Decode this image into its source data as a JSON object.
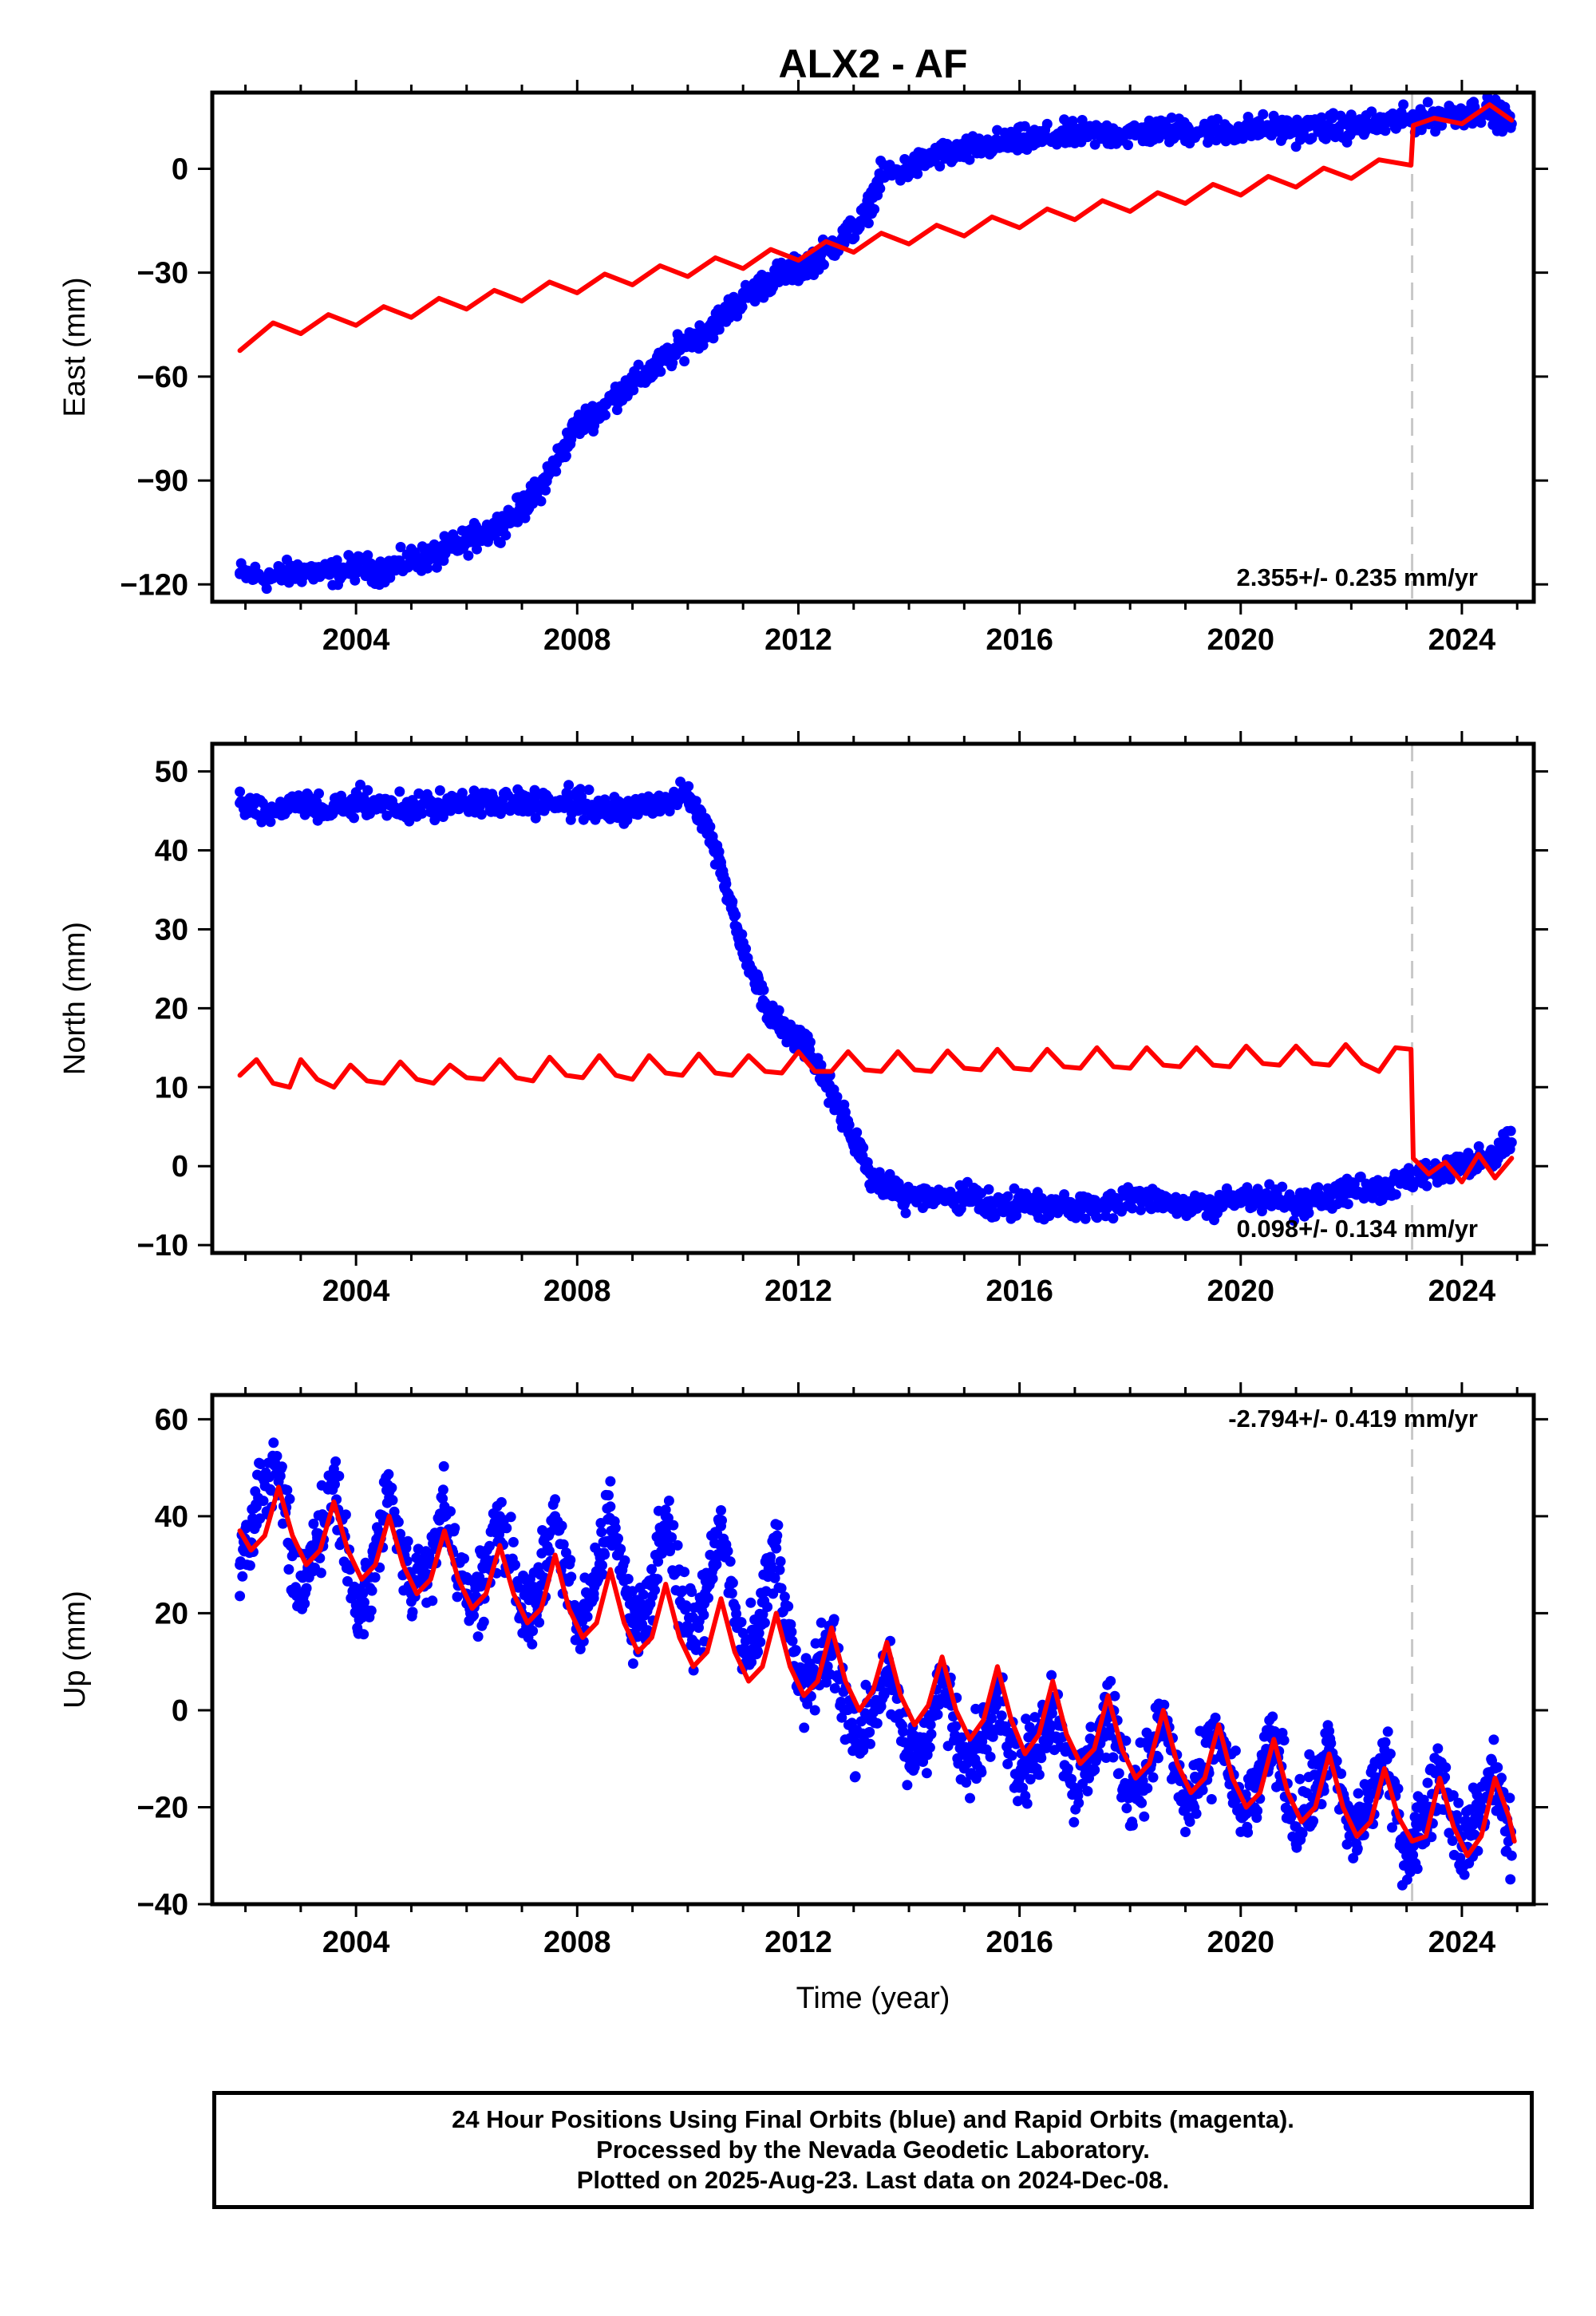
{
  "title": "ALX2 - AF",
  "xlabel": "Time (year)",
  "footer": {
    "line1": "24 Hour Positions Using Final Orbits (blue) and Rapid Orbits (magenta).",
    "line2": "Processed by the Nevada Geodetic Laboratory.",
    "line3": "Plotted on 2025-Aug-23. Last data on 2024-Dec-08."
  },
  "colors": {
    "observations": "#0000ff",
    "model": "#ff0000",
    "break_line": "#c8c8c8",
    "frame": "#000000"
  },
  "chart_data": [
    {
      "type": "scatter",
      "ylabel": "East (mm)",
      "rate_text": "2.355+/- 0.235 mm/yr",
      "xlim": [
        2001.4,
        2025.3
      ],
      "ylim": [
        -125,
        22
      ],
      "xticks": [
        2004,
        2008,
        2012,
        2016,
        2020,
        2024
      ],
      "yticks": [
        -120,
        -90,
        -60,
        -30,
        0
      ],
      "break_epoch": 2023.1,
      "observations": {
        "name": "Final Orbits",
        "x": [
          2001.9,
          2002.5,
          2003.0,
          2003.5,
          2004.0,
          2004.5,
          2005.0,
          2005.4,
          2005.8,
          2006.2,
          2006.6,
          2007.0,
          2007.3,
          2007.6,
          2008.0,
          2008.4,
          2008.8,
          2009.2,
          2009.6,
          2010.0,
          2010.4,
          2010.8,
          2011.2,
          2011.6,
          2012.0,
          2012.4,
          2012.8,
          2013.2,
          2013.5,
          2014.0,
          2014.5,
          2015.0,
          2015.5,
          2016.0,
          2016.5,
          2017.0,
          2017.5,
          2018.0,
          2018.5,
          2019.0,
          2019.5,
          2020.0,
          2020.5,
          2021.0,
          2021.5,
          2022.0,
          2022.5,
          2023.0,
          2023.5,
          2024.0,
          2024.5,
          2024.9
        ],
        "y": [
          -117,
          -118,
          -116,
          -117,
          -115,
          -116,
          -113,
          -112,
          -109,
          -106,
          -103,
          -98,
          -93,
          -85,
          -74,
          -70,
          -64,
          -60,
          -55,
          -50,
          -46,
          -40,
          -35,
          -31,
          -29,
          -25,
          -20,
          -14,
          -2,
          0,
          4,
          5,
          7,
          8,
          9,
          10,
          10,
          10,
          11,
          11,
          11,
          11,
          12,
          11,
          12,
          12,
          13,
          14,
          15,
          16,
          17,
          13
        ]
      },
      "model": {
        "name": "Model",
        "x": [
          2001.9,
          2002.5,
          2003.0,
          2003.5,
          2004.0,
          2004.5,
          2005.0,
          2005.5,
          2006.0,
          2006.5,
          2007.0,
          2007.5,
          2008.0,
          2008.5,
          2009.0,
          2009.5,
          2010.0,
          2010.5,
          2011.0,
          2011.5,
          2012.0,
          2012.5,
          2013.0,
          2013.5,
          2014.0,
          2014.5,
          2015.0,
          2015.5,
          2016.0,
          2016.5,
          2017.0,
          2017.5,
          2018.0,
          2018.5,
          2019.0,
          2019.5,
          2020.0,
          2020.5,
          2021.0,
          2021.5,
          2022.0,
          2022.5,
          2023.08,
          2023.12,
          2023.5,
          2024.0,
          2024.5,
          2024.9
        ],
        "y": [
          -52.5,
          -44.5,
          -47.6,
          -42.1,
          -45.2,
          -39.8,
          -42.9,
          -37.4,
          -40.5,
          -35.1,
          -38.2,
          -32.7,
          -35.8,
          -30.4,
          -33.5,
          -28.0,
          -31.1,
          -25.7,
          -28.8,
          -23.3,
          -26.4,
          -21.0,
          -24.1,
          -18.6,
          -21.7,
          -16.3,
          -19.4,
          -13.9,
          -17.0,
          -11.6,
          -14.7,
          -9.2,
          -12.3,
          -6.9,
          -10.0,
          -4.5,
          -7.6,
          -2.2,
          -5.3,
          0.2,
          -2.8,
          2.6,
          1.0,
          12.5,
          14.6,
          13.0,
          18.5,
          14.0
        ]
      }
    },
    {
      "type": "scatter",
      "ylabel": "North (mm)",
      "rate_text": "0.098+/- 0.134 mm/yr",
      "xlim": [
        2001.4,
        2025.3
      ],
      "ylim": [
        -11,
        53.5
      ],
      "xticks": [
        2004,
        2008,
        2012,
        2016,
        2020,
        2024
      ],
      "yticks": [
        -10,
        0,
        10,
        20,
        30,
        40,
        50
      ],
      "break_epoch": 2023.1,
      "observations": {
        "name": "Final Orbits",
        "x": [
          2001.9,
          2002.5,
          2003.0,
          2003.5,
          2004.0,
          2004.5,
          2005.0,
          2005.5,
          2006.0,
          2006.5,
          2007.0,
          2007.5,
          2008.0,
          2008.5,
          2009.0,
          2009.5,
          2010.0,
          2010.3,
          2010.6,
          2010.9,
          2011.2,
          2011.5,
          2011.8,
          2012.1,
          2012.4,
          2012.7,
          2013.0,
          2013.3,
          2013.7,
          2014.0,
          2014.5,
          2015.0,
          2015.5,
          2016.0,
          2016.5,
          2017.0,
          2017.5,
          2018.0,
          2018.5,
          2019.0,
          2019.5,
          2020.0,
          2020.5,
          2021.0,
          2021.5,
          2022.0,
          2022.5,
          2023.0,
          2023.5,
          2024.0,
          2024.5,
          2024.9
        ],
        "y": [
          46,
          45,
          46,
          45,
          46,
          46,
          45,
          46,
          46,
          46,
          46,
          46,
          46,
          45,
          45,
          46,
          47,
          44,
          38,
          30,
          24,
          19,
          17,
          16,
          12,
          8,
          3,
          -1,
          -3,
          -4,
          -4,
          -4,
          -5,
          -5,
          -5,
          -5,
          -5,
          -4,
          -4,
          -5,
          -5,
          -4,
          -4,
          -5,
          -4,
          -3,
          -3,
          -2,
          -1,
          0,
          1,
          3
        ]
      },
      "model": {
        "name": "Model",
        "x": [
          2001.9,
          2002.2,
          2002.5,
          2002.8,
          2003.0,
          2003.3,
          2003.6,
          2003.9,
          2004.2,
          2004.5,
          2004.8,
          2005.1,
          2005.4,
          2005.7,
          2006.0,
          2006.3,
          2006.6,
          2006.9,
          2007.2,
          2007.5,
          2007.8,
          2008.1,
          2008.4,
          2008.7,
          2009.0,
          2009.3,
          2009.6,
          2009.9,
          2010.2,
          2010.5,
          2010.8,
          2011.1,
          2011.4,
          2011.7,
          2012.0,
          2012.3,
          2012.6,
          2012.9,
          2013.2,
          2013.5,
          2013.8,
          2014.1,
          2014.4,
          2014.7,
          2015.0,
          2015.3,
          2015.6,
          2015.9,
          2016.2,
          2016.5,
          2016.8,
          2017.1,
          2017.4,
          2017.7,
          2018.0,
          2018.3,
          2018.6,
          2018.9,
          2019.2,
          2019.5,
          2019.8,
          2020.1,
          2020.4,
          2020.7,
          2021.0,
          2021.3,
          2021.6,
          2021.9,
          2022.2,
          2022.5,
          2022.8,
          2023.08,
          2023.12,
          2023.4,
          2023.7,
          2024.0,
          2024.3,
          2024.6,
          2024.9
        ],
        "y": [
          11.5,
          13.5,
          10.5,
          10.0,
          13.5,
          11.0,
          10.0,
          12.8,
          10.8,
          10.5,
          13.2,
          11.0,
          10.5,
          12.8,
          11.2,
          11.0,
          13.5,
          11.2,
          10.8,
          13.8,
          11.5,
          11.2,
          14.0,
          11.5,
          11.0,
          14.0,
          11.8,
          11.5,
          14.2,
          11.8,
          11.5,
          14.0,
          12.0,
          11.8,
          14.5,
          12.0,
          12.0,
          14.5,
          12.2,
          12.0,
          14.5,
          12.2,
          12.0,
          14.6,
          12.4,
          12.2,
          14.8,
          12.4,
          12.2,
          14.8,
          12.6,
          12.4,
          15.0,
          12.6,
          12.4,
          15.0,
          12.8,
          12.6,
          15.0,
          12.8,
          12.6,
          15.2,
          13.0,
          12.8,
          15.2,
          13.0,
          12.8,
          15.4,
          13.0,
          12.0,
          15.0,
          14.8,
          1.0,
          -1.0,
          0.5,
          -2.0,
          1.5,
          -1.5,
          1.0
        ]
      }
    },
    {
      "type": "scatter",
      "ylabel": "Up (mm)",
      "rate_text": "-2.794+/- 0.419 mm/yr",
      "xlim": [
        2001.4,
        2025.3
      ],
      "ylim": [
        -40,
        65
      ],
      "xticks": [
        2004,
        2008,
        2012,
        2016,
        2020,
        2024
      ],
      "yticks": [
        -40,
        -20,
        0,
        20,
        40,
        60
      ],
      "break_epoch": 2023.1,
      "observations": {
        "name": "Final Orbits",
        "x": [
          2001.9,
          2002.2,
          2002.6,
          2003.0,
          2003.3,
          2003.6,
          2004.0,
          2004.3,
          2004.6,
          2005.0,
          2005.3,
          2005.6,
          2006.0,
          2006.3,
          2006.6,
          2007.0,
          2007.3,
          2007.6,
          2008.0,
          2008.3,
          2008.6,
          2009.0,
          2009.3,
          2009.6,
          2010.0,
          2010.3,
          2010.6,
          2011.0,
          2011.3,
          2011.6,
          2012.0,
          2012.3,
          2012.6,
          2013.0,
          2013.3,
          2013.6,
          2014.0,
          2014.3,
          2014.6,
          2015.0,
          2015.3,
          2015.6,
          2016.0,
          2016.3,
          2016.6,
          2017.0,
          2017.3,
          2017.6,
          2018.0,
          2018.3,
          2018.6,
          2019.0,
          2019.3,
          2019.6,
          2020.0,
          2020.3,
          2020.6,
          2021.0,
          2021.3,
          2021.6,
          2022.0,
          2022.3,
          2022.6,
          2023.0,
          2023.3,
          2023.6,
          2024.0,
          2024.3,
          2024.6,
          2024.9
        ],
        "y": [
          30,
          42,
          50,
          22,
          35,
          48,
          20,
          30,
          45,
          24,
          28,
          42,
          22,
          26,
          40,
          20,
          24,
          40,
          18,
          24,
          42,
          18,
          22,
          40,
          16,
          22,
          38,
          12,
          18,
          35,
          4,
          6,
          14,
          -6,
          -2,
          8,
          -10,
          -6,
          6,
          -12,
          -6,
          4,
          -14,
          -8,
          2,
          -16,
          -10,
          0,
          -18,
          -12,
          -2,
          -20,
          -14,
          -4,
          -22,
          -16,
          -6,
          -24,
          -18,
          -8,
          -26,
          -20,
          -10,
          -30,
          -22,
          -12,
          -28,
          -22,
          -12,
          -30
        ]
      },
      "model": {
        "name": "Model",
        "x": [
          2001.9,
          2002.1,
          2002.35,
          2002.6,
          2002.85,
          2003.1,
          2003.35,
          2003.6,
          2003.85,
          2004.1,
          2004.35,
          2004.6,
          2004.85,
          2005.1,
          2005.35,
          2005.6,
          2005.85,
          2006.1,
          2006.35,
          2006.6,
          2006.85,
          2007.1,
          2007.35,
          2007.6,
          2007.85,
          2008.1,
          2008.35,
          2008.6,
          2008.85,
          2009.1,
          2009.35,
          2009.6,
          2009.85,
          2010.1,
          2010.35,
          2010.6,
          2010.85,
          2011.1,
          2011.35,
          2011.6,
          2011.85,
          2012.1,
          2012.35,
          2012.6,
          2012.85,
          2013.1,
          2013.35,
          2013.6,
          2013.85,
          2014.1,
          2014.35,
          2014.6,
          2014.85,
          2015.1,
          2015.35,
          2015.6,
          2015.85,
          2016.1,
          2016.35,
          2016.6,
          2016.85,
          2017.1,
          2017.35,
          2017.6,
          2017.85,
          2018.1,
          2018.35,
          2018.6,
          2018.85,
          2019.1,
          2019.35,
          2019.6,
          2019.85,
          2020.1,
          2020.35,
          2020.6,
          2020.85,
          2021.1,
          2021.35,
          2021.6,
          2021.85,
          2022.1,
          2022.35,
          2022.6,
          2022.85,
          2023.1,
          2023.35,
          2023.6,
          2023.85,
          2024.1,
          2024.35,
          2024.6,
          2024.85,
          2024.95
        ],
        "y": [
          37,
          33,
          36,
          46,
          36,
          30,
          33,
          43,
          33,
          27,
          30,
          40,
          30,
          24,
          27,
          37,
          27,
          21,
          24,
          34,
          24,
          18,
          21,
          32,
          21,
          15,
          18,
          29,
          18,
          12,
          15,
          26,
          15,
          9,
          12,
          23,
          12,
          6,
          9,
          20,
          9,
          3,
          6,
          17,
          6,
          0,
          4,
          14,
          3,
          -3,
          1,
          11,
          0,
          -6,
          -2,
          9,
          -2,
          -9,
          -5,
          6,
          -5,
          -11,
          -8,
          3,
          -8,
          -14,
          -11,
          0,
          -11,
          -17,
          -14,
          -3,
          -14,
          -20,
          -17,
          -6,
          -17,
          -23,
          -20,
          -9,
          -20,
          -26,
          -23,
          -12,
          -22,
          -27,
          -26,
          -14,
          -24,
          -30,
          -26,
          -14,
          -22,
          -27
        ]
      }
    }
  ]
}
